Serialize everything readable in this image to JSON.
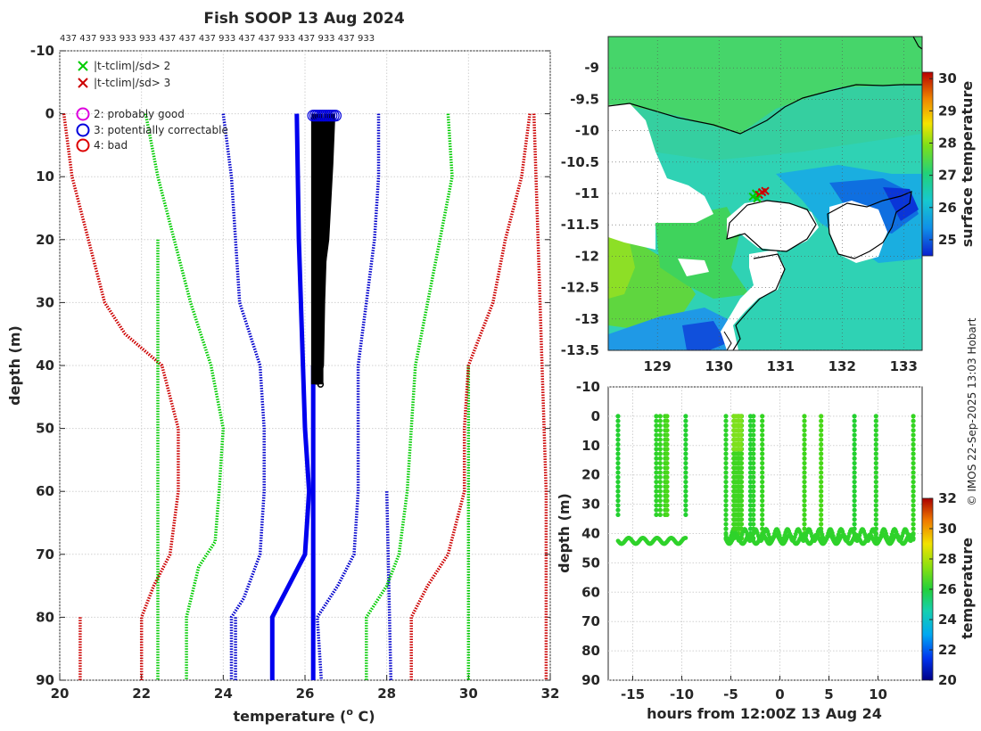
{
  "chart_data": [
    {
      "type": "line",
      "title": "Fish SOOP 13 Aug 2024",
      "subtitle": "437 437 933 933 933 437 437 437 933 437 437 933 437 933 437 933",
      "xlabel": "temperature (o C)",
      "xlabel_prefix": "temperature (",
      "xlabel_sup": "o",
      "xlabel_suffix": " C)",
      "ylabel": "depth (m)",
      "xlim": [
        20,
        32
      ],
      "ylim": [
        -10,
        90
      ],
      "xticks": [
        20,
        22,
        24,
        26,
        28,
        30,
        32
      ],
      "yticks": [
        -10,
        0,
        10,
        20,
        30,
        40,
        50,
        60,
        70,
        80,
        90
      ],
      "legend": [
        {
          "label": "|t-tclim|/sd> 2",
          "marker": "x",
          "color": "#00cc00"
        },
        {
          "label": "|t-tclim|/sd> 3",
          "marker": "x",
          "color": "#cc0000"
        },
        {
          "label": "2: probably good",
          "marker": "o",
          "color": "#dd00dd"
        },
        {
          "label": "3: potentially correctable",
          "marker": "o",
          "color": "#0000dd"
        },
        {
          "label": "4: bad",
          "marker": "o",
          "color": "#dd0000"
        }
      ],
      "series": [
        {
          "name": "climatology -3sd",
          "color": "#cc0000",
          "style": "dotted",
          "points": [
            [
              20.1,
              0
            ],
            [
              20.3,
              10
            ],
            [
              20.7,
              20
            ],
            [
              21.1,
              30
            ],
            [
              21.6,
              35
            ],
            [
              22.5,
              40
            ],
            [
              22.9,
              50
            ],
            [
              22.9,
              60
            ],
            [
              22.7,
              70
            ],
            [
              22.3,
              75
            ],
            [
              22.0,
              80
            ],
            [
              22.0,
              90
            ]
          ]
        },
        {
          "name": "climatology -3sd (b)",
          "color": "#cc0000",
          "style": "dotted",
          "points": [
            [
              20.5,
              80
            ],
            [
              20.5,
              90
            ]
          ]
        },
        {
          "name": "climatology -2sd",
          "color": "#00cc00",
          "style": "dotted",
          "points": [
            [
              22.1,
              0
            ],
            [
              22.4,
              10
            ],
            [
              22.8,
              20
            ],
            [
              23.2,
              30
            ],
            [
              23.7,
              40
            ],
            [
              24.0,
              50
            ],
            [
              23.9,
              60
            ],
            [
              23.8,
              68
            ],
            [
              23.4,
              72
            ],
            [
              23.1,
              80
            ],
            [
              23.1,
              90
            ]
          ]
        },
        {
          "name": "climatology -2sd (b)",
          "color": "#00cc00",
          "style": "dotted",
          "points": [
            [
              22.4,
              20
            ],
            [
              22.4,
              90
            ]
          ]
        },
        {
          "name": "climatology -1sd",
          "color": "#0000cc",
          "style": "dotted",
          "points": [
            [
              24.0,
              0
            ],
            [
              24.2,
              10
            ],
            [
              24.3,
              20
            ],
            [
              24.4,
              30
            ],
            [
              24.9,
              40
            ],
            [
              25.0,
              50
            ],
            [
              25.0,
              60
            ],
            [
              24.9,
              70
            ],
            [
              24.5,
              77
            ],
            [
              24.2,
              80
            ],
            [
              24.2,
              90
            ]
          ]
        },
        {
          "name": "climatology -1sd (b)",
          "color": "#0000cc",
          "style": "dotted",
          "points": [
            [
              24.3,
              80
            ],
            [
              24.3,
              90
            ]
          ]
        },
        {
          "name": "climatology mean",
          "color": "#0000ee",
          "style": "solid",
          "points": [
            [
              25.8,
              0
            ],
            [
              25.85,
              20
            ],
            [
              25.9,
              30
            ],
            [
              25.95,
              40
            ],
            [
              26.0,
              50
            ],
            [
              26.1,
              60
            ],
            [
              26.0,
              70
            ],
            [
              25.6,
              75
            ],
            [
              25.2,
              80
            ],
            [
              25.2,
              90
            ]
          ]
        },
        {
          "name": "climatology mean (b)",
          "color": "#0000ee",
          "style": "solid",
          "points": [
            [
              26.2,
              40
            ],
            [
              26.2,
              90
            ]
          ]
        },
        {
          "name": "climatology +1sd",
          "color": "#0000cc",
          "style": "dotted",
          "points": [
            [
              27.8,
              0
            ],
            [
              27.8,
              10
            ],
            [
              27.7,
              20
            ],
            [
              27.5,
              30
            ],
            [
              27.3,
              40
            ],
            [
              27.3,
              60
            ],
            [
              27.2,
              70
            ],
            [
              26.8,
              75
            ],
            [
              26.3,
              80
            ],
            [
              26.4,
              90
            ]
          ]
        },
        {
          "name": "climatology +1sd (b)",
          "color": "#0000cc",
          "style": "dotted",
          "points": [
            [
              28.0,
              60
            ],
            [
              28.1,
              90
            ]
          ]
        },
        {
          "name": "climatology +2sd",
          "color": "#00cc00",
          "style": "dotted",
          "points": [
            [
              29.5,
              0
            ],
            [
              29.6,
              10
            ],
            [
              29.3,
              20
            ],
            [
              29.0,
              30
            ],
            [
              28.7,
              40
            ],
            [
              28.6,
              50
            ],
            [
              28.5,
              60
            ],
            [
              28.3,
              70
            ],
            [
              28.0,
              75
            ],
            [
              27.5,
              80
            ],
            [
              27.5,
              90
            ]
          ]
        },
        {
          "name": "climatology +2sd (b)",
          "color": "#00cc00",
          "style": "dotted",
          "points": [
            [
              30.0,
              40
            ],
            [
              30.0,
              90
            ]
          ]
        },
        {
          "name": "climatology +3sd",
          "color": "#cc0000",
          "style": "dotted",
          "points": [
            [
              31.5,
              0
            ],
            [
              31.3,
              10
            ],
            [
              30.9,
              20
            ],
            [
              30.6,
              30
            ],
            [
              30.0,
              40
            ],
            [
              29.9,
              50
            ],
            [
              29.9,
              60
            ],
            [
              29.5,
              70
            ],
            [
              29.0,
              75
            ],
            [
              28.6,
              80
            ],
            [
              28.6,
              90
            ]
          ]
        },
        {
          "name": "climatology +3sd (b)",
          "color": "#cc0000",
          "style": "dotted",
          "points": [
            [
              31.6,
              0
            ],
            [
              31.7,
              20
            ],
            [
              31.8,
              40
            ],
            [
              31.9,
              60
            ],
            [
              31.9,
              90
            ]
          ]
        },
        {
          "name": "observed profiles",
          "color": "#000000",
          "style": "solid",
          "points": [
            [
              26.6,
              0
            ],
            [
              26.6,
              5
            ],
            [
              26.5,
              10
            ],
            [
              26.4,
              20
            ],
            [
              26.35,
              30
            ],
            [
              26.3,
              40
            ],
            [
              26.3,
              43
            ]
          ]
        },
        {
          "name": "observed profiles (b)",
          "color": "#000000",
          "style": "solid",
          "points": [
            [
              26.2,
              0
            ],
            [
              26.2,
              10
            ],
            [
              26.25,
              20
            ],
            [
              26.25,
              30
            ],
            [
              26.3,
              43
            ]
          ]
        }
      ]
    },
    {
      "type": "heatmap",
      "xlim": [
        128.2,
        133.3
      ],
      "ylim": [
        -13.5,
        -8.5
      ],
      "xticks": [
        129,
        130,
        131,
        132,
        133
      ],
      "yticks": [
        -9,
        -9.5,
        -10,
        -10.5,
        -11,
        -11.5,
        -12,
        -12.5,
        -13,
        -13.5
      ],
      "colorbar_label": "surface temperature",
      "colorbar_ticks": [
        25,
        26,
        27,
        28,
        29,
        30
      ],
      "colorbar_range": [
        24.5,
        30.2
      ]
    },
    {
      "type": "scatter",
      "xlabel": "hours from 12:00Z 13 Aug 24",
      "ylabel": "depth (m)",
      "xlim": [
        -17.5,
        14.5
      ],
      "ylim": [
        -10,
        90
      ],
      "xticks": [
        -15,
        -10,
        -5,
        0,
        5,
        10
      ],
      "yticks": [
        -10,
        0,
        10,
        20,
        30,
        40,
        50,
        60,
        70,
        80,
        90
      ],
      "colorbar_label": "temperature",
      "colorbar_ticks": [
        20,
        22,
        24,
        26,
        28,
        30,
        32
      ],
      "colorbar_range": [
        20,
        32
      ],
      "casts": [
        -16.5,
        -12.6,
        -12.2,
        -11.7,
        -11.5,
        -9.6,
        -5.5,
        -4.7,
        -4.2,
        -3.9,
        -3.0,
        -2.7,
        -1.8,
        2.5,
        4.2,
        7.6,
        9.8,
        13.6
      ]
    }
  ],
  "copyright": "© IMOS 22-Sep-2025 13:03 Hobart"
}
